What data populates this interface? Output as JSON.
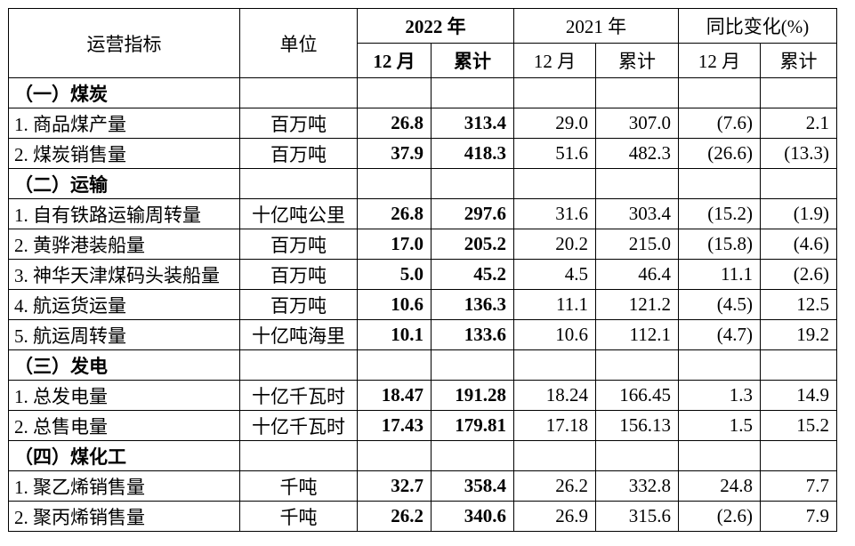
{
  "header": {
    "indicator": "运营指标",
    "unit": "单位",
    "year_2022": "2022 年",
    "year_2021": "2021 年",
    "yoy": "同比变化(%)",
    "month": "12 月",
    "cumulative": "累计"
  },
  "rows": [
    {
      "type": "section",
      "name": "（一）煤炭"
    },
    {
      "type": "data",
      "name": "1. 商品煤产量",
      "unit": "百万吨",
      "v": [
        "26.8",
        "313.4",
        "29.0",
        "307.0",
        "(7.6)",
        "2.1"
      ]
    },
    {
      "type": "data",
      "name": "2. 煤炭销售量",
      "unit": "百万吨",
      "v": [
        "37.9",
        "418.3",
        "51.6",
        "482.3",
        "(26.6)",
        "(13.3)"
      ]
    },
    {
      "type": "section",
      "name": "（二）运输"
    },
    {
      "type": "data",
      "name": "1. 自有铁路运输周转量",
      "unit": "十亿吨公里",
      "v": [
        "26.8",
        "297.6",
        "31.6",
        "303.4",
        "(15.2)",
        "(1.9)"
      ]
    },
    {
      "type": "data",
      "name": "2. 黄骅港装船量",
      "unit": "百万吨",
      "v": [
        "17.0",
        "205.2",
        "20.2",
        "215.0",
        "(15.8)",
        "(4.6)"
      ]
    },
    {
      "type": "data",
      "name": "3. 神华天津煤码头装船量",
      "unit": "百万吨",
      "v": [
        "5.0",
        "45.2",
        "4.5",
        "46.4",
        "11.1",
        "(2.6)"
      ]
    },
    {
      "type": "data",
      "name": "4. 航运货运量",
      "unit": "百万吨",
      "v": [
        "10.6",
        "136.3",
        "11.1",
        "121.2",
        "(4.5)",
        "12.5"
      ]
    },
    {
      "type": "data",
      "name": "5. 航运周转量",
      "unit": "十亿吨海里",
      "v": [
        "10.1",
        "133.6",
        "10.6",
        "112.1",
        "(4.7)",
        "19.2"
      ]
    },
    {
      "type": "section",
      "name": "（三）发电"
    },
    {
      "type": "data",
      "name": "1. 总发电量",
      "unit": "十亿千瓦时",
      "v": [
        "18.47",
        "191.28",
        "18.24",
        "166.45",
        "1.3",
        "14.9"
      ]
    },
    {
      "type": "data",
      "name": "2. 总售电量",
      "unit": "十亿千瓦时",
      "v": [
        "17.43",
        "179.81",
        "17.18",
        "156.13",
        "1.5",
        "15.2"
      ]
    },
    {
      "type": "section",
      "name": "（四）煤化工"
    },
    {
      "type": "data",
      "name": "1. 聚乙烯销售量",
      "unit": "千吨",
      "v": [
        "32.7",
        "358.4",
        "26.2",
        "332.8",
        "24.8",
        "7.7"
      ]
    },
    {
      "type": "data",
      "name": "2. 聚丙烯销售量",
      "unit": "千吨",
      "v": [
        "26.2",
        "340.6",
        "26.9",
        "315.6",
        "(2.6)",
        "7.9"
      ]
    }
  ]
}
